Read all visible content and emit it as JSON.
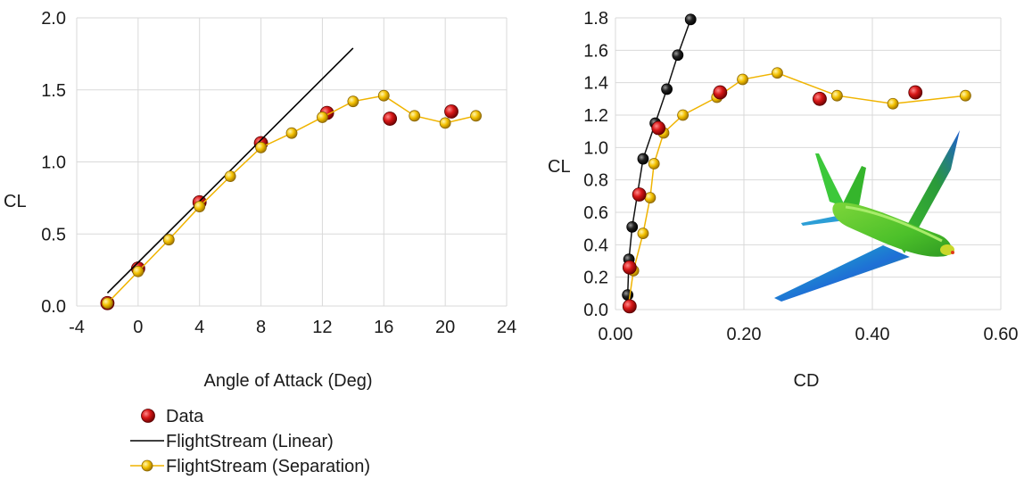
{
  "chart_data": [
    {
      "type": "scatter",
      "xlabel": "Angle of Attack (Deg)",
      "ylabel": "CL",
      "xlim": [
        -4,
        24
      ],
      "ylim": [
        0,
        2.0
      ],
      "xticks": [
        "-4",
        "0",
        "4",
        "8",
        "12",
        "16",
        "20",
        "24"
      ],
      "yticks": [
        "0.0",
        "0.5",
        "1.0",
        "1.5",
        "2.0"
      ],
      "grid": true,
      "series": [
        {
          "name": "Data",
          "kind": "marker",
          "color": "#cc1111",
          "x": [
            -2,
            0,
            4,
            8,
            12.3,
            16.4,
            20.4
          ],
          "y": [
            0.02,
            0.26,
            0.72,
            1.13,
            1.34,
            1.3,
            1.35
          ]
        },
        {
          "name": "FlightStream (Linear)",
          "kind": "line",
          "color": "#000000",
          "x": [
            -2,
            14
          ],
          "y": [
            0.09,
            1.79
          ]
        },
        {
          "name": "FlightStream (Separation)",
          "kind": "line-marker",
          "color": "#f0b400",
          "x": [
            -2,
            0,
            2,
            4,
            6,
            8,
            10,
            12,
            14,
            16,
            18,
            20,
            22
          ],
          "y": [
            0.02,
            0.24,
            0.46,
            0.69,
            0.9,
            1.1,
            1.2,
            1.31,
            1.42,
            1.46,
            1.32,
            1.27,
            1.32
          ]
        }
      ]
    },
    {
      "type": "scatter",
      "xlabel": "CD",
      "ylabel": "CL",
      "xlim": [
        0,
        0.6
      ],
      "ylim": [
        0,
        1.8
      ],
      "xticks": [
        "0.00",
        "0.20",
        "0.40",
        "0.60"
      ],
      "yticks": [
        "0.0",
        "0.2",
        "0.4",
        "0.6",
        "0.8",
        "1.0",
        "1.2",
        "1.4",
        "1.6",
        "1.8"
      ],
      "grid": true,
      "series": [
        {
          "name": "Data",
          "kind": "marker",
          "color": "#cc1111",
          "x": [
            0.022,
            0.022,
            0.037,
            0.067,
            0.163,
            0.318,
            0.467
          ],
          "y": [
            0.02,
            0.26,
            0.71,
            1.12,
            1.34,
            1.3,
            1.34
          ]
        },
        {
          "name": "FlightStream (Linear)",
          "kind": "line-marker",
          "color": "#111111",
          "x": [
            0.019,
            0.021,
            0.026,
            0.043,
            0.062,
            0.08,
            0.097,
            0.117
          ],
          "y": [
            0.09,
            0.31,
            0.51,
            0.93,
            1.15,
            1.36,
            1.57,
            1.79
          ]
        },
        {
          "name": "FlightStream (Separation)",
          "kind": "line-marker",
          "color": "#f0b400",
          "x": [
            0.02,
            0.028,
            0.043,
            0.054,
            0.06,
            0.075,
            0.105,
            0.158,
            0.198,
            0.252,
            0.345,
            0.432,
            0.545
          ],
          "y": [
            0.02,
            0.24,
            0.47,
            0.69,
            0.9,
            1.09,
            1.2,
            1.31,
            1.42,
            1.46,
            1.32,
            1.27,
            1.32
          ]
        }
      ]
    }
  ],
  "legend": [
    {
      "label": "Data",
      "kind": "marker",
      "color": "#cc1111"
    },
    {
      "label": "FlightStream (Linear)",
      "kind": "line",
      "color": "#000000"
    },
    {
      "label": "FlightStream (Separation)",
      "kind": "line-marker",
      "color": "#f0b400"
    }
  ],
  "colors": {
    "grid": "#d9d9d9",
    "data": "#cc1111",
    "linear": "#000000",
    "separation": "#f0b400"
  }
}
